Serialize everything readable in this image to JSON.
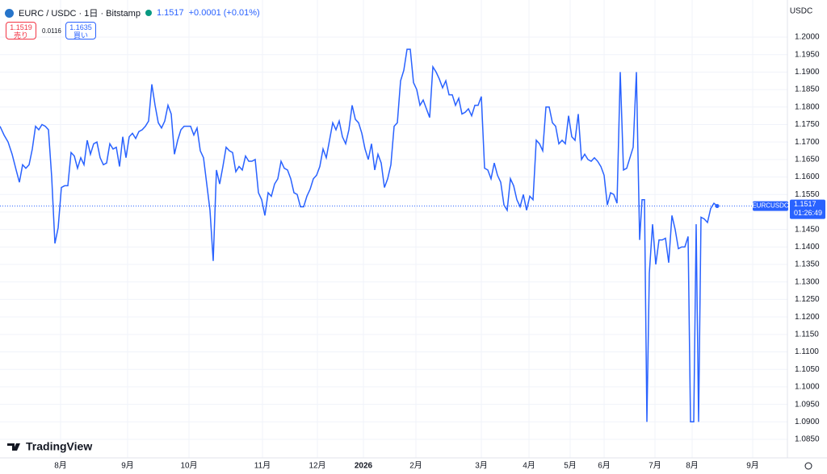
{
  "header": {
    "symbol": "EURC / USDC · 1日 · Bitstamp",
    "price": "1.1517",
    "change": "+0.0001 (+0.01%)",
    "sell_price": "1.1519",
    "sell_label": "売り",
    "spread": "0.0116",
    "buy_price": "1.1635",
    "buy_label": "買い",
    "currency": "USDC",
    "logo": "TradingView"
  },
  "chart_data": {
    "type": "line",
    "symbol_label": "EURCUSDC",
    "countdown": "01:26:49",
    "x": [
      0,
      5,
      10,
      15,
      20,
      24,
      28,
      32,
      36,
      40,
      44,
      48,
      52,
      56,
      60,
      64,
      68,
      72,
      76,
      80,
      84,
      88,
      92,
      96,
      100,
      104,
      108,
      112,
      116,
      120,
      124,
      128,
      132,
      136,
      140,
      144,
      148,
      152,
      156,
      160,
      164,
      168,
      172,
      176,
      180,
      184,
      188,
      192,
      196,
      200,
      204,
      208,
      212,
      216,
      220,
      224,
      228,
      232,
      236,
      240,
      244,
      248,
      252,
      256,
      260,
      264,
      268,
      272,
      276,
      280,
      284,
      288,
      292,
      296,
      300,
      304,
      308,
      312,
      316,
      320,
      324,
      328,
      332,
      336,
      340,
      344,
      348,
      352,
      356,
      360,
      364,
      368,
      372,
      376,
      380,
      384,
      388,
      392,
      396,
      400,
      404,
      408,
      412,
      416,
      420,
      424,
      428,
      432,
      436,
      440,
      444,
      448,
      452,
      456,
      460,
      464,
      468,
      472,
      476,
      480,
      484,
      488,
      492,
      496,
      500,
      504,
      508,
      512,
      516,
      520,
      524,
      528,
      532,
      536,
      540,
      544,
      548,
      552,
      556,
      560,
      564,
      568,
      572,
      576,
      580,
      584,
      588,
      592,
      596,
      600,
      604,
      608,
      612,
      616,
      620,
      624,
      628,
      632,
      636,
      640,
      644,
      648,
      652,
      656,
      660,
      664,
      668,
      672,
      676,
      680,
      684,
      688,
      692,
      696,
      700,
      704,
      708,
      712,
      716,
      720,
      724,
      728,
      732,
      736,
      740,
      744,
      748,
      752,
      756,
      760,
      764,
      768,
      772,
      776,
      780,
      784,
      788,
      792,
      795,
      798,
      801,
      804,
      808,
      812,
      816,
      820,
      824,
      828,
      832,
      836,
      840,
      844,
      848,
      852,
      855,
      859,
      862,
      865,
      868,
      872,
      876,
      880,
      884,
      888
    ],
    "series": [
      {
        "name": "EURCUSDC",
        "color": "#2962ff",
        "values": [
          1.1745,
          1.172,
          1.17,
          1.1665,
          1.162,
          1.1585,
          1.1635,
          1.1625,
          1.1635,
          1.168,
          1.1745,
          1.1735,
          1.175,
          1.1745,
          1.1735,
          1.16,
          1.141,
          1.1455,
          1.157,
          1.1575,
          1.1575,
          1.167,
          1.166,
          1.1625,
          1.1655,
          1.1635,
          1.1705,
          1.1665,
          1.1695,
          1.17,
          1.1655,
          1.1635,
          1.164,
          1.1695,
          1.168,
          1.1685,
          1.163,
          1.1715,
          1.1655,
          1.1715,
          1.1725,
          1.171,
          1.173,
          1.1735,
          1.1745,
          1.176,
          1.1865,
          1.1805,
          1.1755,
          1.174,
          1.176,
          1.1805,
          1.178,
          1.1665,
          1.1705,
          1.1735,
          1.1745,
          1.1745,
          1.1745,
          1.172,
          1.174,
          1.1675,
          1.1655,
          1.158,
          1.1505,
          1.136,
          1.162,
          1.158,
          1.163,
          1.1685,
          1.1675,
          1.167,
          1.1615,
          1.163,
          1.162,
          1.166,
          1.1645,
          1.1645,
          1.165,
          1.1555,
          1.1535,
          1.149,
          1.1555,
          1.1545,
          1.158,
          1.1595,
          1.1645,
          1.1625,
          1.162,
          1.1595,
          1.1555,
          1.155,
          1.1515,
          1.1515,
          1.1545,
          1.1565,
          1.1595,
          1.1605,
          1.163,
          1.168,
          1.1655,
          1.1705,
          1.1755,
          1.1735,
          1.176,
          1.1715,
          1.1695,
          1.1735,
          1.1805,
          1.1765,
          1.1755,
          1.1725,
          1.168,
          1.165,
          1.1695,
          1.162,
          1.1665,
          1.164,
          1.157,
          1.1595,
          1.1635,
          1.1745,
          1.1755,
          1.1875,
          1.1905,
          1.1965,
          1.1965,
          1.187,
          1.185,
          1.1805,
          1.182,
          1.1795,
          1.177,
          1.1915,
          1.19,
          1.188,
          1.1855,
          1.1875,
          1.1835,
          1.1835,
          1.1805,
          1.1825,
          1.178,
          1.1785,
          1.1795,
          1.1775,
          1.1805,
          1.1805,
          1.183,
          1.1625,
          1.162,
          1.1595,
          1.164,
          1.1605,
          1.1585,
          1.152,
          1.1505,
          1.1595,
          1.1575,
          1.1535,
          1.1515,
          1.155,
          1.1505,
          1.1545,
          1.1535,
          1.1705,
          1.1695,
          1.1675,
          1.18,
          1.18,
          1.1755,
          1.1745,
          1.1695,
          1.1705,
          1.1695,
          1.1775,
          1.1715,
          1.1705,
          1.178,
          1.165,
          1.1665,
          1.165,
          1.1645,
          1.1655,
          1.1645,
          1.163,
          1.1605,
          1.152,
          1.1555,
          1.155,
          1.1525,
          1.19,
          1.162,
          1.1625,
          1.1655,
          1.1685,
          1.19,
          1.142,
          1.1535,
          1.1535,
          1.09,
          1.1325,
          1.1465,
          1.135,
          1.142,
          1.142,
          1.1425,
          1.1355,
          1.149,
          1.145,
          1.1395,
          1.14,
          1.14,
          1.143,
          1.09,
          1.09,
          1.1465,
          1.09,
          1.1485,
          1.148,
          1.147,
          1.151,
          1.1525,
          1.1517
        ]
      }
    ],
    "xlim": [
      0,
      975
    ],
    "ylim": [
      1.0797,
      1.2106
    ],
    "xticks": [
      {
        "value": 75,
        "label": "8月"
      },
      {
        "value": 158,
        "label": "9月"
      },
      {
        "value": 234,
        "label": "10月"
      },
      {
        "value": 325,
        "label": "11月"
      },
      {
        "value": 393,
        "label": "12月"
      },
      {
        "value": 450,
        "label": "2026"
      },
      {
        "value": 515,
        "label": "2月"
      },
      {
        "value": 596,
        "label": "3月"
      },
      {
        "value": 655,
        "label": "4月"
      },
      {
        "value": 706,
        "label": "5月"
      },
      {
        "value": 748,
        "label": "6月"
      },
      {
        "value": 811,
        "label": "7月"
      },
      {
        "value": 857,
        "label": "8月"
      },
      {
        "value": 932,
        "label": "9月"
      }
    ],
    "yticks": [
      {
        "value": 1.2,
        "label": "1.2000"
      },
      {
        "value": 1.195,
        "label": "1.1950"
      },
      {
        "value": 1.19,
        "label": "1.1900"
      },
      {
        "value": 1.185,
        "label": "1.1850"
      },
      {
        "value": 1.18,
        "label": "1.1800"
      },
      {
        "value": 1.175,
        "label": "1.1750"
      },
      {
        "value": 1.17,
        "label": "1.1700"
      },
      {
        "value": 1.165,
        "label": "1.1650"
      },
      {
        "value": 1.16,
        "label": "1.1600"
      },
      {
        "value": 1.155,
        "label": "1.1550"
      },
      {
        "value": 1.15,
        "label": "1.1500"
      },
      {
        "value": 1.145,
        "label": "1.1450"
      },
      {
        "value": 1.14,
        "label": "1.1400"
      },
      {
        "value": 1.135,
        "label": "1.1350"
      },
      {
        "value": 1.13,
        "label": "1.1300"
      },
      {
        "value": 1.125,
        "label": "1.1250"
      },
      {
        "value": 1.12,
        "label": "1.1200"
      },
      {
        "value": 1.115,
        "label": "1.1150"
      },
      {
        "value": 1.11,
        "label": "1.1100"
      },
      {
        "value": 1.105,
        "label": "1.1050"
      },
      {
        "value": 1.1,
        "label": "1.1000"
      },
      {
        "value": 1.095,
        "label": "1.0950"
      },
      {
        "value": 1.09,
        "label": "1.0900"
      },
      {
        "value": 1.085,
        "label": "1.0850"
      }
    ],
    "grid": true
  }
}
